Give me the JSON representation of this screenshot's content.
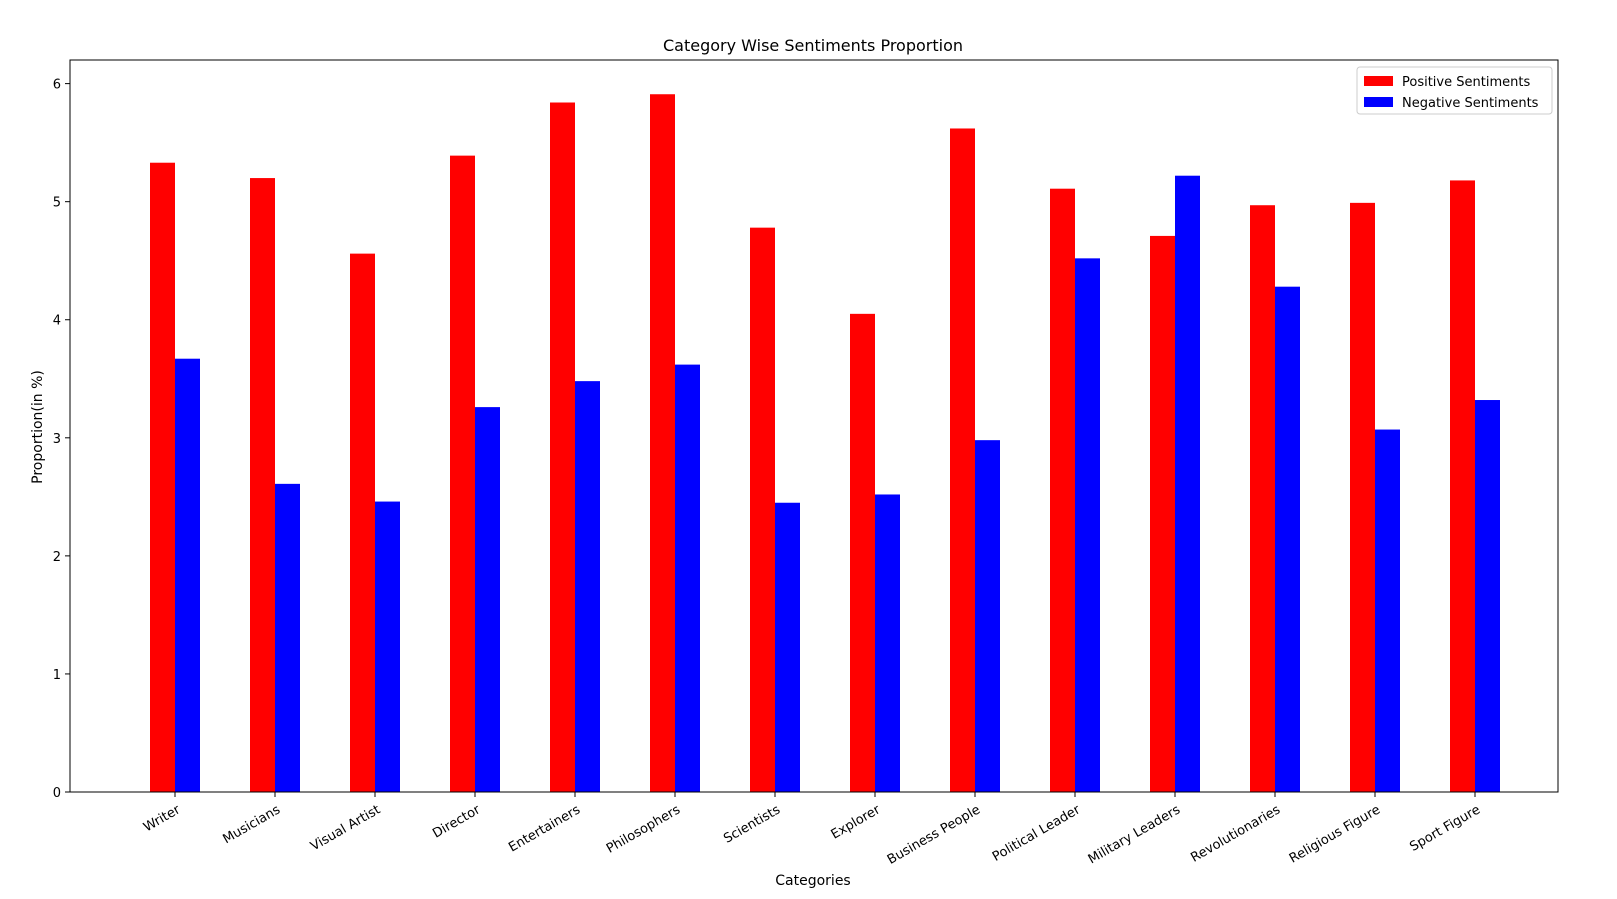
{
  "chart_data": {
    "type": "bar",
    "title": "Category Wise Sentiments Proportion",
    "xlabel": "Categories",
    "ylabel": "Proportion(in %)",
    "ylim": [
      0,
      6.2
    ],
    "yticks": [
      "0",
      "1",
      "2",
      "3",
      "4",
      "5",
      "6"
    ],
    "categories": [
      "Writer",
      "Musicians",
      "Visual Artist",
      "Director",
      "Entertainers",
      "Philosophers",
      "Scientists",
      "Explorer",
      "Business People",
      "Political Leader",
      "Military Leaders",
      "Revolutionaries",
      "Religious Figure",
      "Sport Figure"
    ],
    "series": [
      {
        "name": "Positive Sentiments",
        "color": "#ff0000",
        "values": [
          5.33,
          5.2,
          4.56,
          5.39,
          5.84,
          5.91,
          4.78,
          4.05,
          5.62,
          5.11,
          4.71,
          4.97,
          4.99,
          5.18
        ]
      },
      {
        "name": "Negative Sentiments",
        "color": "#0000ff",
        "values": [
          3.67,
          2.61,
          2.46,
          3.26,
          3.48,
          3.62,
          2.45,
          2.52,
          2.98,
          4.52,
          5.22,
          4.28,
          3.07,
          3.32
        ]
      }
    ],
    "legend_position": "top-right",
    "grid": false
  }
}
